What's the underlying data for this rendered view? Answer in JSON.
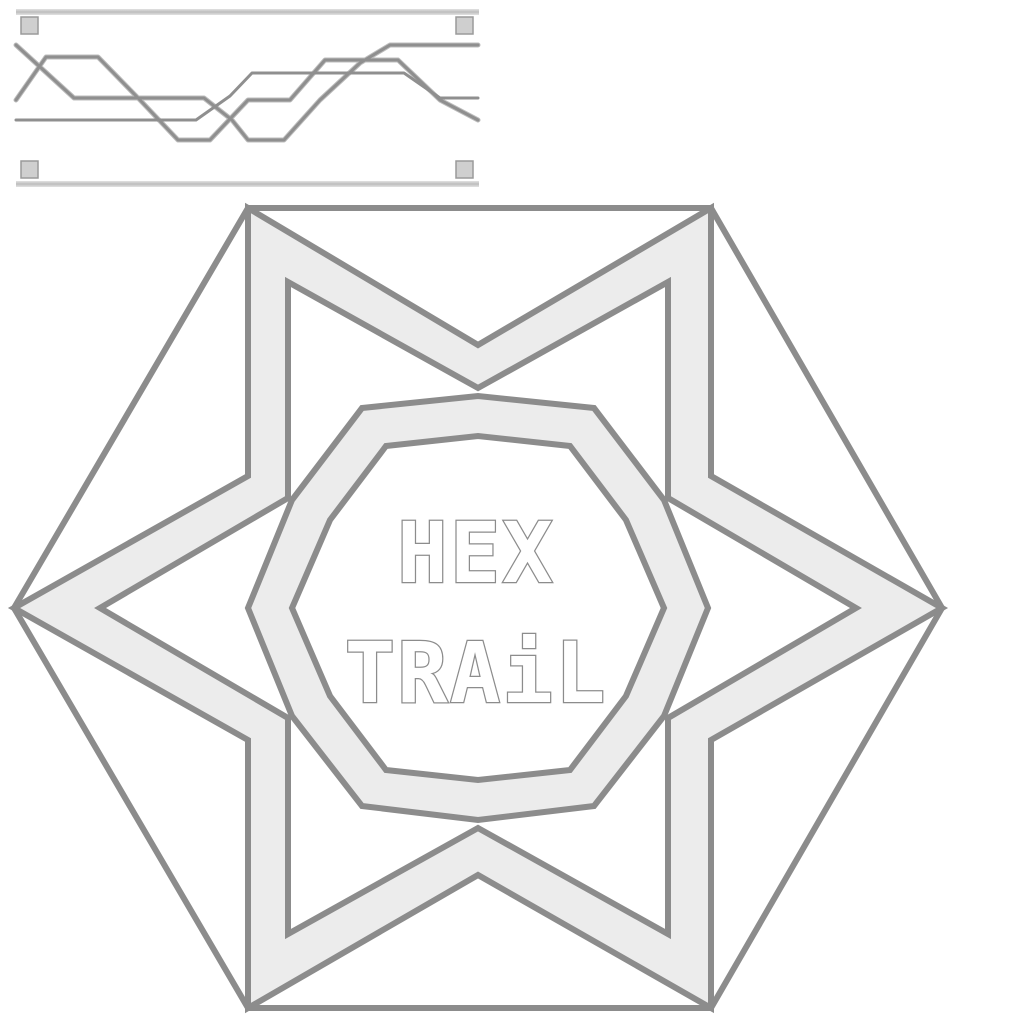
{
  "title": {
    "line1": "HEX",
    "line2": "TRAiL"
  },
  "icons": {
    "preview": "trail-lines-icon",
    "emblem": "hexagram-emblem-icon"
  },
  "colors": {
    "line": "#8c8c8c",
    "band": "#ececec",
    "band_edge": "#d6d6d6",
    "background": "#ffffff"
  }
}
